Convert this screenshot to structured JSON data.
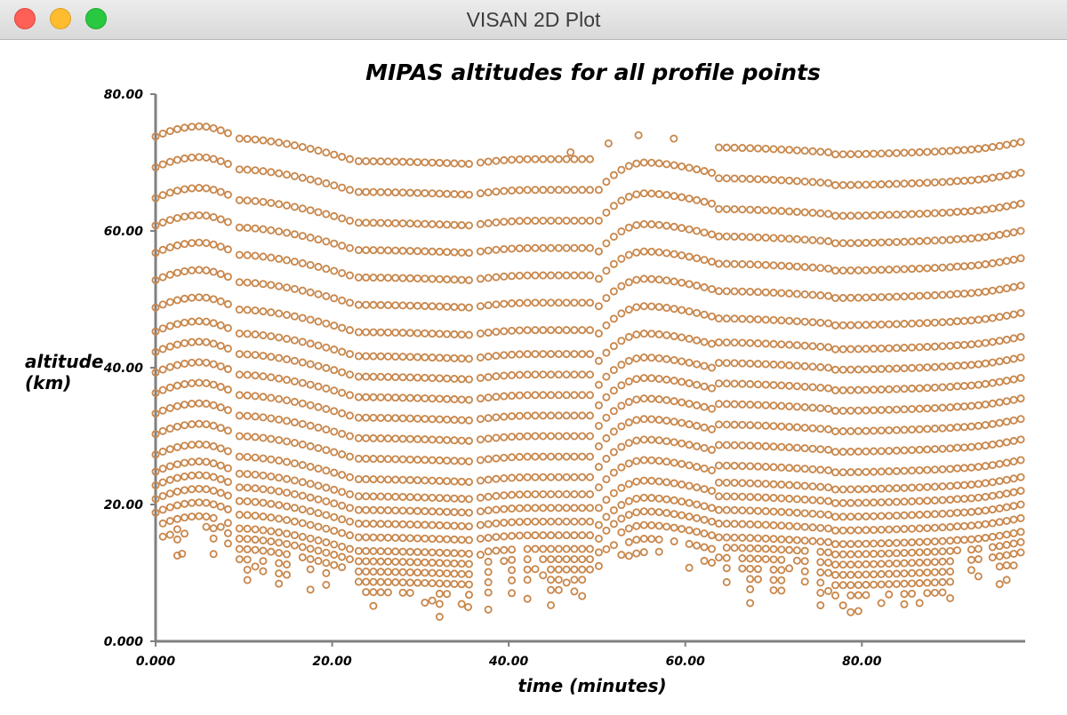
{
  "window": {
    "title": "VISAN 2D Plot",
    "controls": [
      "close",
      "minimize",
      "maximize"
    ]
  },
  "chart_data": {
    "type": "scatter",
    "title": "MIPAS altitudes for all profile points",
    "xlabel": "time (minutes)",
    "ylabel_line1": "altitude",
    "ylabel_line2": "(km)",
    "xlim": [
      0,
      98.5
    ],
    "ylim": [
      0,
      80
    ],
    "x_ticks": [
      0,
      20,
      40,
      60,
      80
    ],
    "y_ticks": [
      0,
      20,
      40,
      60,
      80
    ],
    "x_tick_labels": [
      "0.000",
      "20.00",
      "40.00",
      "60.00",
      "80.00"
    ],
    "y_tick_labels": [
      "0.000",
      "20.00",
      "40.00",
      "60.00",
      "80.00"
    ],
    "grid": false,
    "marker": "open-circle",
    "marker_color": "#c8864a",
    "segments": [
      {
        "x_start": 0.0,
        "x_end": 8.2,
        "n": 11,
        "top_start": 73.8,
        "top_end": 74.3,
        "peak_x": 5.2,
        "peak": 75.3,
        "bottom_min": 13,
        "bottom_max": 19
      },
      {
        "x_start": 9.5,
        "x_end": 22.0,
        "n": 15,
        "top_start": 73.5,
        "top_end": 70.5,
        "peak_x": 9.5,
        "peak": 73.5,
        "bottom_min": 6,
        "bottom_max": 13
      },
      {
        "x_start": 23.0,
        "x_end": 35.5,
        "n": 16,
        "top_start": 70.2,
        "top_end": 69.8,
        "peak_x": 23.0,
        "peak": 70.2,
        "bottom_min": 5,
        "bottom_max": 9
      },
      {
        "x_start": 36.8,
        "x_end": 49.2,
        "n": 15,
        "top_start": 70.0,
        "top_end": 70.5,
        "peak_x": 43.0,
        "peak": 70.5,
        "bottom_min": 6,
        "bottom_max": 15
      },
      {
        "x_start": 50.2,
        "x_end": 63.0,
        "n": 16,
        "top_start": 66.0,
        "top_end": 68.5,
        "peak_x": 55.5,
        "peak": 70.0,
        "bottom_min": 10,
        "bottom_max": 17
      },
      {
        "x_start": 63.8,
        "x_end": 76.2,
        "n": 15,
        "top_start": 72.2,
        "top_end": 71.5,
        "peak_x": 63.8,
        "peak": 72.2,
        "bottom_min": 6,
        "bottom_max": 14
      },
      {
        "x_start": 77.0,
        "x_end": 90.0,
        "n": 16,
        "top_start": 71.2,
        "top_end": 71.7,
        "peak_x": 77.0,
        "peak": 71.2,
        "bottom_min": 5,
        "bottom_max": 8
      },
      {
        "x_start": 90.8,
        "x_end": 98.0,
        "n": 10,
        "top_start": 71.8,
        "top_end": 73.0,
        "peak_x": 90.8,
        "peak": 71.8,
        "bottom_min": 9,
        "bottom_max": 14
      }
    ],
    "level_offsets": [
      0,
      -4.5,
      -9,
      -13,
      -17,
      -21,
      -25,
      -28.5,
      -31.5,
      -34.5,
      -37.5,
      -40.5,
      -43.5,
      -46.5,
      -49,
      -51,
      -53,
      -55,
      -57,
      -58.5,
      -60,
      -61.5,
      -63,
      -64.5,
      -66,
      -67.5
    ],
    "isolated_points": [
      {
        "x": 47.0,
        "y": 71.5
      },
      {
        "x": 51.3,
        "y": 72.8
      },
      {
        "x": 54.7,
        "y": 74.0
      },
      {
        "x": 58.7,
        "y": 73.5
      },
      {
        "x": 3.0,
        "y": 12.8
      },
      {
        "x": 35.4,
        "y": 5.0
      }
    ]
  }
}
